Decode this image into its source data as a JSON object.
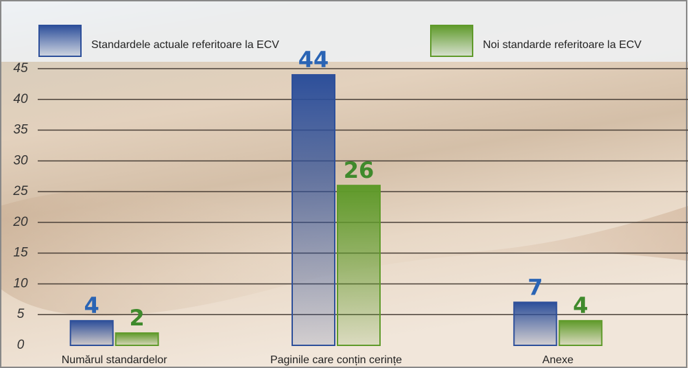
{
  "chart_data": {
    "type": "bar",
    "categories": [
      "Numărul standardelor",
      "Paginile care conțin cerințe",
      "Anexe"
    ],
    "series": [
      {
        "name": "Standardele actuale referitoare la ECV",
        "color": "#2d4f9a",
        "label_color": "#2a64b4",
        "values": [
          4,
          44,
          7
        ]
      },
      {
        "name": "Noi standarde referitoare la ECV",
        "color": "#5f9a2a",
        "label_color": "#3f8a2c",
        "values": [
          2,
          26,
          4
        ]
      }
    ],
    "ylim": [
      0,
      45
    ],
    "yticks": [
      0,
      5,
      10,
      15,
      20,
      25,
      30,
      35,
      40,
      45
    ],
    "grid": true
  }
}
